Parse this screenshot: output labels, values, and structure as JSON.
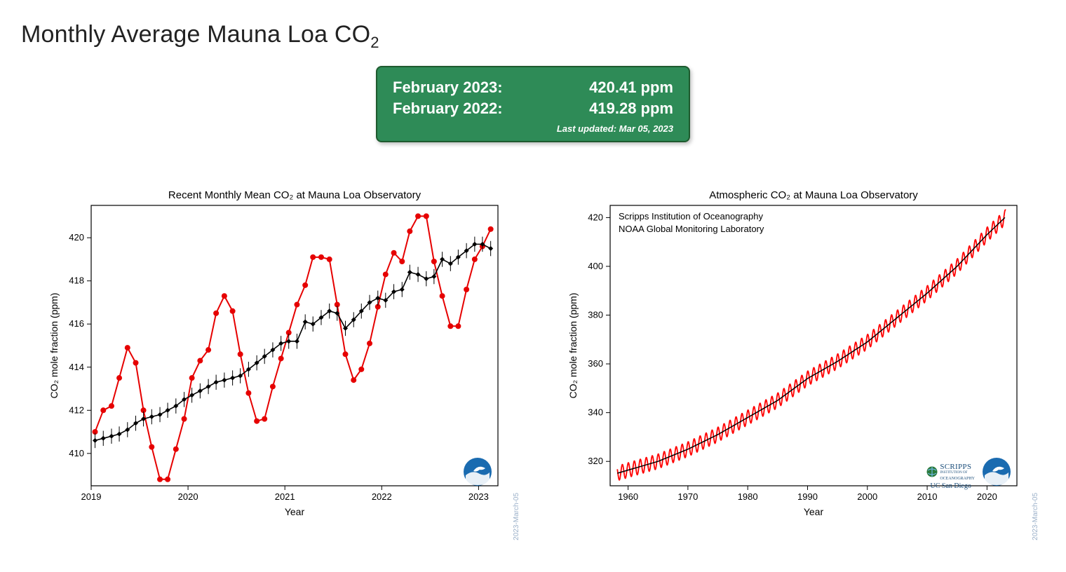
{
  "page_title_html": "Monthly Average Mauna Loa CO<sub>2</sub>",
  "summary": {
    "background_color": "#2e8b57",
    "border_color": "#1e5a2e",
    "rows": [
      {
        "label": "February 2023:",
        "value": "420.41 ppm"
      },
      {
        "label": "February 2022:",
        "value": "419.28 ppm"
      }
    ],
    "updated_text": "Last updated: Mar 05, 2023"
  },
  "chart_left": {
    "type": "line",
    "title": "Recent Monthly Mean CO₂ at Mauna Loa Observatory",
    "title_fontsize": 15,
    "xlabel": "Year",
    "ylabel": "CO₂ mole fraction (ppm)",
    "label_fontsize": 14,
    "xlim": [
      2019,
      2023.2
    ],
    "xticks": [
      2019,
      2020,
      2021,
      2022,
      2023
    ],
    "ylim": [
      408.5,
      421.5
    ],
    "yticks": [
      410,
      412,
      414,
      416,
      418,
      420
    ],
    "background": "#ffffff",
    "border_color": "#000000",
    "series": [
      {
        "name": "monthly_mean",
        "color": "#e60000",
        "line_width": 2,
        "marker": "circle",
        "marker_size": 4,
        "x": [
          2019.04,
          2019.125,
          2019.21,
          2019.29,
          2019.375,
          2019.46,
          2019.54,
          2019.625,
          2019.71,
          2019.79,
          2019.875,
          2019.96,
          2020.04,
          2020.125,
          2020.21,
          2020.29,
          2020.375,
          2020.46,
          2020.54,
          2020.625,
          2020.71,
          2020.79,
          2020.875,
          2020.96,
          2021.04,
          2021.125,
          2021.21,
          2021.29,
          2021.375,
          2021.46,
          2021.54,
          2021.625,
          2021.71,
          2021.79,
          2021.875,
          2021.96,
          2022.04,
          2022.125,
          2022.21,
          2022.29,
          2022.375,
          2022.46,
          2022.54,
          2022.625,
          2022.71,
          2022.79,
          2022.875,
          2022.96,
          2023.04,
          2023.125
        ],
        "y": [
          411.0,
          412.0,
          412.2,
          413.5,
          414.9,
          414.2,
          412.0,
          410.3,
          408.8,
          408.8,
          410.2,
          411.6,
          413.5,
          414.3,
          414.8,
          416.5,
          417.3,
          416.6,
          414.6,
          412.8,
          411.5,
          411.6,
          413.1,
          414.4,
          415.6,
          416.9,
          417.8,
          419.1,
          419.1,
          419.0,
          416.9,
          414.6,
          413.4,
          413.9,
          415.1,
          416.8,
          418.3,
          419.3,
          418.9,
          420.3,
          421.0,
          421.0,
          418.9,
          417.3,
          415.9,
          415.9,
          417.6,
          419.0,
          419.6,
          420.4
        ]
      },
      {
        "name": "trend",
        "color": "#000000",
        "line_width": 1.6,
        "marker": "diamond",
        "marker_size": 3.5,
        "error_bar": 0.35,
        "x": [
          2019.04,
          2019.125,
          2019.21,
          2019.29,
          2019.375,
          2019.46,
          2019.54,
          2019.625,
          2019.71,
          2019.79,
          2019.875,
          2019.96,
          2020.04,
          2020.125,
          2020.21,
          2020.29,
          2020.375,
          2020.46,
          2020.54,
          2020.625,
          2020.71,
          2020.79,
          2020.875,
          2020.96,
          2021.04,
          2021.125,
          2021.21,
          2021.29,
          2021.375,
          2021.46,
          2021.54,
          2021.625,
          2021.71,
          2021.79,
          2021.875,
          2021.96,
          2022.04,
          2022.125,
          2022.21,
          2022.29,
          2022.375,
          2022.46,
          2022.54,
          2022.625,
          2022.71,
          2022.79,
          2022.875,
          2022.96,
          2023.04,
          2023.125
        ],
        "y": [
          410.6,
          410.7,
          410.8,
          410.9,
          411.1,
          411.4,
          411.6,
          411.7,
          411.8,
          412.0,
          412.2,
          412.5,
          412.7,
          412.9,
          413.1,
          413.3,
          413.4,
          413.5,
          413.6,
          413.9,
          414.2,
          414.5,
          414.8,
          415.1,
          415.2,
          415.2,
          416.1,
          416.0,
          416.3,
          416.6,
          416.5,
          415.8,
          416.2,
          416.6,
          417.0,
          417.2,
          417.1,
          417.5,
          417.6,
          418.4,
          418.3,
          418.1,
          418.2,
          419.0,
          418.8,
          419.1,
          419.4,
          419.7,
          419.7,
          419.5
        ]
      }
    ],
    "watermark": "2023-March-05"
  },
  "chart_right": {
    "type": "line",
    "title": "Atmospheric CO₂ at Mauna Loa Observatory",
    "title_fontsize": 15,
    "xlabel": "Year",
    "ylabel": "CO₂ mole fraction (ppm)",
    "label_fontsize": 14,
    "xlim": [
      1957,
      2025
    ],
    "xticks": [
      1960,
      1970,
      1980,
      1990,
      2000,
      2010,
      2020
    ],
    "ylim": [
      310,
      425
    ],
    "yticks": [
      320,
      340,
      360,
      380,
      400,
      420
    ],
    "background": "#ffffff",
    "border_color": "#000000",
    "annotation_lines": [
      "Scripps Institution of Oceanography",
      "NOAA Global Monitoring Laboratory"
    ],
    "annotation_fontsize": 13,
    "trend": {
      "color": "#000000",
      "line_width": 1.5,
      "anchors": [
        [
          1958,
          315
        ],
        [
          1965,
          320
        ],
        [
          1970,
          325
        ],
        [
          1975,
          331
        ],
        [
          1980,
          338
        ],
        [
          1985,
          345
        ],
        [
          1990,
          354
        ],
        [
          1995,
          361
        ],
        [
          2000,
          369
        ],
        [
          2005,
          379
        ],
        [
          2010,
          389
        ],
        [
          2015,
          400
        ],
        [
          2020,
          413
        ],
        [
          2023,
          420
        ]
      ]
    },
    "seasonal": {
      "color": "#ff0000",
      "line_width": 1.8,
      "amplitude": 3.0
    },
    "watermark": "2023-March-05",
    "logos": {
      "scripps_text": "SCRIPPS INSTITUTION OF OCEANOGRAPHY",
      "ucsd_text": "UC San Diego"
    }
  }
}
